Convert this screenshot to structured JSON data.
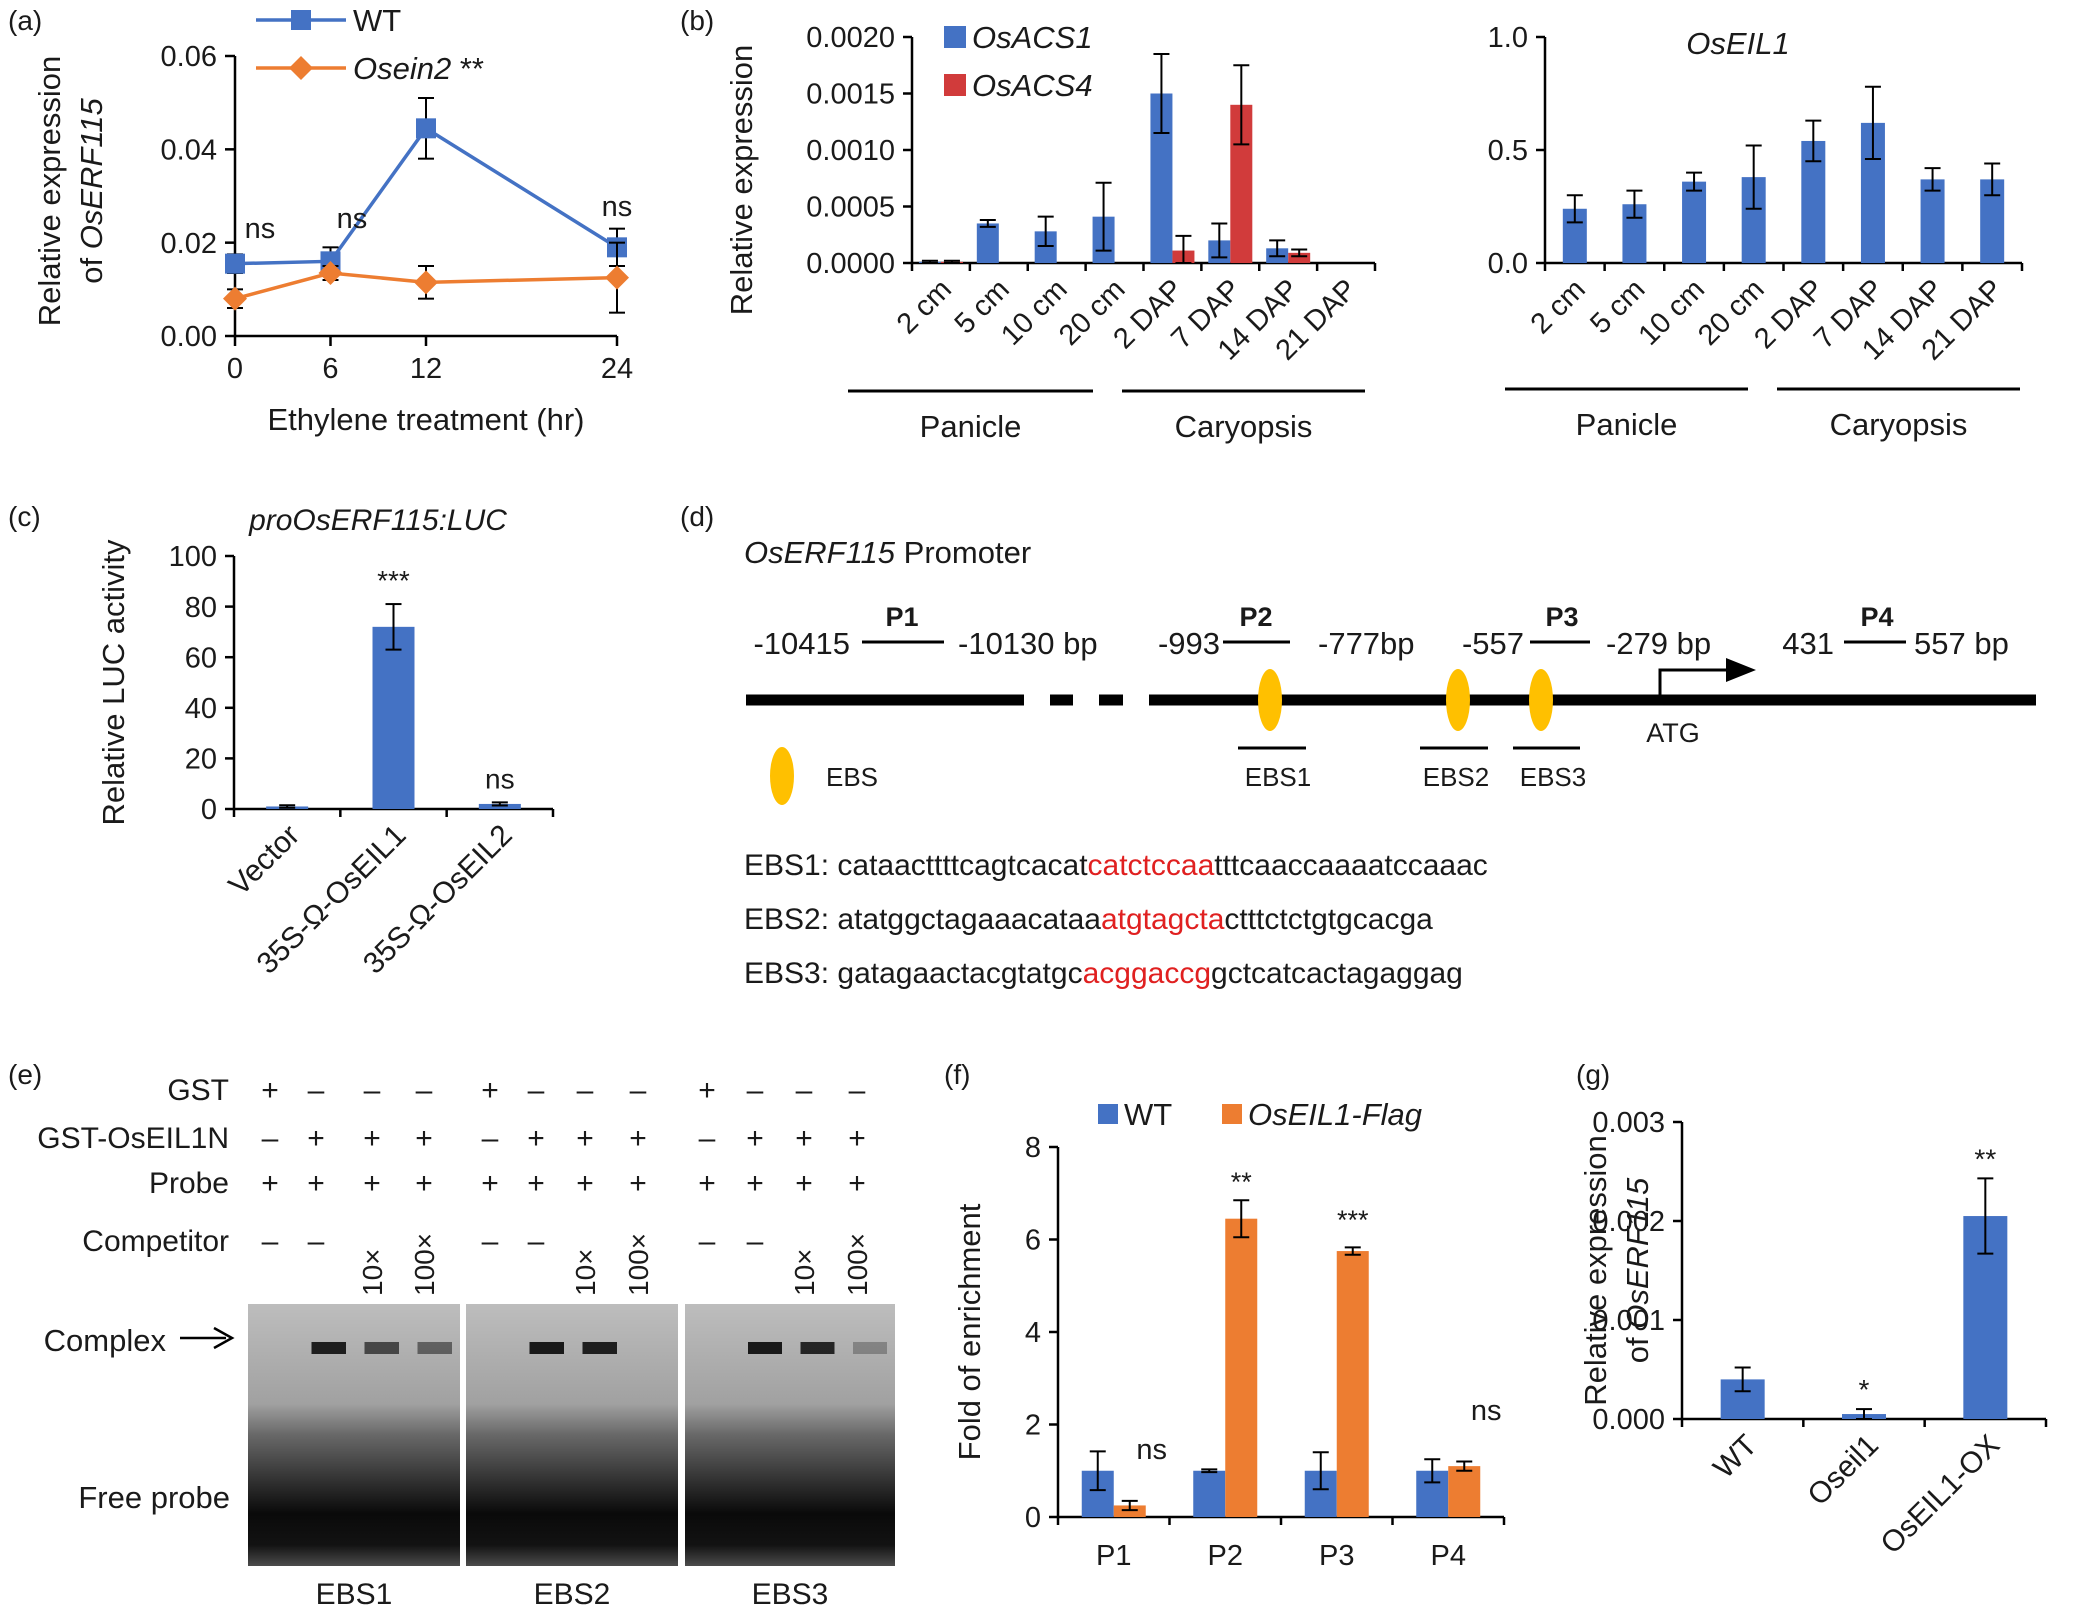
{
  "panels": {
    "a": "(a)",
    "b": "(b)",
    "c": "(c)",
    "d": "(d)",
    "e": "(e)",
    "f": "(f)",
    "g": "(g)"
  },
  "colors": {
    "blue": "#4472C4",
    "orange": "#ED7D31",
    "red": "#D13B3B",
    "gold": "#FFC000",
    "seqred": "#E02020"
  },
  "chart_data": [
    {
      "id": "a",
      "type": "line",
      "xlabel": "Ethylene treatment (hr)",
      "ylabel": [
        "Relative expression",
        "of OsERF115"
      ],
      "x": [
        0,
        6,
        12,
        24
      ],
      "xticks": [
        "0",
        "6",
        "12",
        "24"
      ],
      "yticks": [
        "0.00",
        "0.02",
        "0.04",
        "0.06"
      ],
      "ylim": [
        0,
        0.06
      ],
      "series": [
        {
          "name": "WT",
          "values": [
            0.0155,
            0.016,
            0.0445,
            0.019
          ],
          "errors": [
            0.002,
            0.003,
            0.0065,
            0.004
          ],
          "color": "#4472C4",
          "marker": "square"
        },
        {
          "name": "Osein2",
          "values": [
            0.008,
            0.0135,
            0.0115,
            0.0125
          ],
          "errors": [
            0.002,
            0.0015,
            0.0035,
            0.0075
          ],
          "color": "#ED7D31",
          "marker": "diamond"
        }
      ],
      "legend_suffix": "**",
      "annotations": [
        "ns",
        "ns",
        "ns"
      ],
      "legend": "top"
    },
    {
      "id": "b-left",
      "type": "bar",
      "ylabel": "Relative expression",
      "categories": [
        "2 cm",
        "5 cm",
        "10 cm",
        "20 cm",
        "2 DAP",
        "7 DAP",
        "14 DAP",
        "21 DAP"
      ],
      "yticks": [
        "0.0000",
        "0.0005",
        "0.0010",
        "0.0015",
        "0.0020"
      ],
      "ylim": [
        0,
        0.002
      ],
      "series": [
        {
          "name": "OsACS1",
          "values": [
            1e-05,
            0.00035,
            0.00028,
            0.00041,
            0.0015,
            0.0002,
            0.00013,
            0
          ],
          "errors": [
            1e-05,
            3e-05,
            0.00013,
            0.0003,
            0.00035,
            0.00015,
            7e-05,
            0
          ],
          "color": "#4472C4"
        },
        {
          "name": "OsACS4",
          "values": [
            1e-05,
            0,
            0,
            0,
            0.00011,
            0.0014,
            9e-05,
            0
          ],
          "errors": [
            1e-05,
            0,
            0,
            0,
            0.00013,
            0.00035,
            3e-05,
            0
          ],
          "color": "#D13B3B"
        }
      ],
      "groups": [
        "Panicle",
        "Caryopsis"
      ],
      "legend": "top-left"
    },
    {
      "id": "b-right",
      "type": "bar",
      "title": "OsEIL1",
      "categories": [
        "2 cm",
        "5 cm",
        "10 cm",
        "20 cm",
        "2 DAP",
        "7 DAP",
        "14 DAP",
        "21 DAP"
      ],
      "yticks": [
        "0.0",
        "0.5",
        "1.0"
      ],
      "ylim": [
        0,
        1.0
      ],
      "series": [
        {
          "name": "OsEIL1",
          "values": [
            0.24,
            0.26,
            0.36,
            0.38,
            0.54,
            0.62,
            0.37,
            0.37
          ],
          "errors": [
            0.06,
            0.06,
            0.04,
            0.14,
            0.09,
            0.16,
            0.05,
            0.07
          ],
          "color": "#4472C4"
        }
      ],
      "groups": [
        "Panicle",
        "Caryopsis"
      ]
    },
    {
      "id": "c",
      "type": "bar",
      "title": "proOsERF115:LUC",
      "ylabel": "Relative LUC activity",
      "categories": [
        "Vector",
        "35S-Ω-OsEIL1",
        "35S-Ω-OsEIL2"
      ],
      "yticks": [
        "0",
        "20",
        "40",
        "60",
        "80",
        "100"
      ],
      "ylim": [
        0,
        100
      ],
      "series": [
        {
          "name": "",
          "values": [
            1,
            72,
            2
          ],
          "errors": [
            0.5,
            9,
            0.6
          ],
          "color": "#4472C4"
        }
      ],
      "annotations": [
        "",
        "***",
        "ns"
      ]
    },
    {
      "id": "f",
      "type": "bar",
      "ylabel": "Fold of enrichment",
      "categories": [
        "P1",
        "P2",
        "P3",
        "P4"
      ],
      "yticks": [
        "0",
        "2",
        "4",
        "6",
        "8"
      ],
      "ylim": [
        0,
        8
      ],
      "series": [
        {
          "name": "WT",
          "values": [
            1,
            1,
            1,
            1
          ],
          "errors": [
            0.42,
            0.03,
            0.4,
            0.25
          ],
          "color": "#4472C4"
        },
        {
          "name": "OsEIL1-Flag",
          "values": [
            0.25,
            6.45,
            5.75,
            1.1
          ],
          "errors": [
            0.1,
            0.4,
            0.08,
            0.1
          ],
          "color": "#ED7D31"
        }
      ],
      "annotations": [
        "ns",
        "**",
        "***",
        "ns"
      ],
      "legend": "top"
    },
    {
      "id": "g",
      "type": "bar",
      "ylabel": [
        "Relative expression",
        "of OsERF115"
      ],
      "categories": [
        "WT",
        "Oseil1",
        "OsEIL1-OX"
      ],
      "yticks": [
        "0.000",
        "0.001",
        "0.002",
        "0.003"
      ],
      "ylim": [
        0,
        0.003
      ],
      "series": [
        {
          "name": "",
          "values": [
            0.0004,
            5e-05,
            0.00205
          ],
          "errors": [
            0.00012,
            5e-05,
            0.00038
          ],
          "color": "#4472C4"
        }
      ],
      "annotations": [
        "",
        "*",
        "**"
      ]
    }
  ],
  "diagram_d": {
    "title_gene": "OsERF115",
    "title_rest": " Promoter",
    "probes": [
      {
        "name": "P1",
        "left": "-10415",
        "right": "-10130  bp"
      },
      {
        "name": "P2",
        "left": "-993",
        "right": "-777bp"
      },
      {
        "name": "P3",
        "left": "-557",
        "right": "-279  bp"
      },
      {
        "name": "P4",
        "left": "431",
        "right": "557  bp"
      }
    ],
    "atg": "ATG",
    "legend_ebs": "EBS",
    "ebs_labels": [
      "EBS1",
      "EBS2",
      "EBS3"
    ],
    "sequences": [
      {
        "label": "EBS1:",
        "pre": "cataacttttcagtcacat",
        "core": "catctccaa",
        "post": "tttcaaccaaaatccaaac"
      },
      {
        "label": "EBS2:",
        "pre": "atatggctagaaacataa",
        "core": "atgtagcta",
        "post": "ctttctctgtgcacga"
      },
      {
        "label": "EBS3:",
        "pre": "gatagaactacgtatgc",
        "core": "acggaccg",
        "post": "gctcatcactagaggag"
      }
    ]
  },
  "emsa_e": {
    "rows": [
      {
        "label": "GST",
        "values": [
          "+",
          "–",
          "–",
          "–",
          "+",
          "–",
          "–",
          "–",
          "+",
          "–",
          "–",
          "–"
        ]
      },
      {
        "label": "GST-OsEIL1N",
        "values": [
          "–",
          "+",
          "+",
          "+",
          "–",
          "+",
          "+",
          "+",
          "–",
          "+",
          "+",
          "+"
        ]
      },
      {
        "label": "Probe",
        "values": [
          "+",
          "+",
          "+",
          "+",
          "+",
          "+",
          "+",
          "+",
          "+",
          "+",
          "+",
          "+"
        ]
      },
      {
        "label": "Competitor",
        "values": [
          "–",
          "–",
          "10×",
          "100×",
          "–",
          "–",
          "10×",
          "100×",
          "–",
          "–",
          "10×",
          "100×"
        ]
      }
    ],
    "complex_label": "Complex",
    "free_probe_label": "Free probe",
    "blot_labels": [
      "EBS1",
      "EBS2",
      "EBS3"
    ],
    "complex_intensity": [
      [
        0,
        0.9,
        0.55,
        0.35
      ],
      [
        0,
        0.95,
        0.9,
        0
      ],
      [
        0,
        0.95,
        0.85,
        0.05
      ]
    ]
  }
}
